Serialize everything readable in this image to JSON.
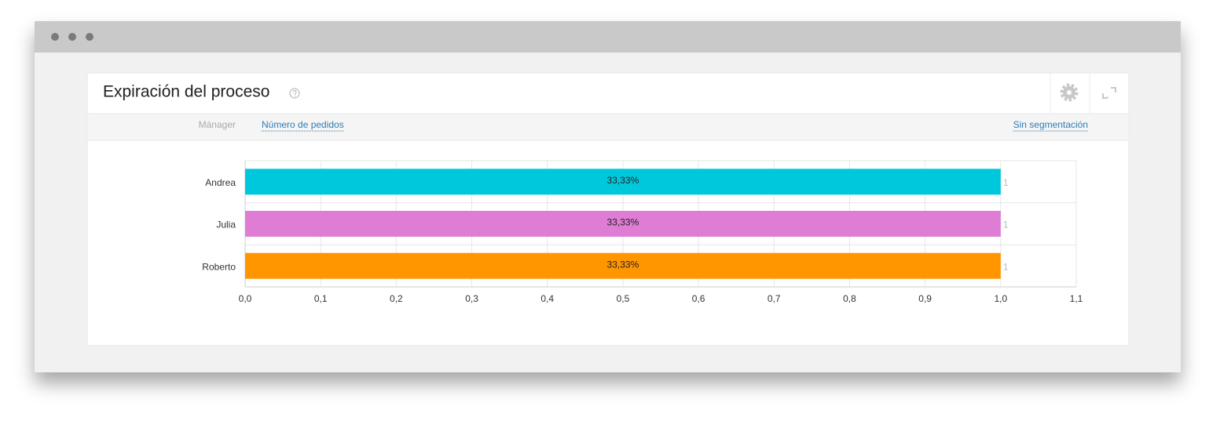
{
  "widget": {
    "title": "Expiración del proceso",
    "toolbar": {
      "dimension": "Mánager",
      "metric": "Número de pedidos",
      "segmentation": "Sin segmentación"
    }
  },
  "chart_data": {
    "type": "bar",
    "orientation": "horizontal",
    "categories": [
      "Andrea",
      "Julia",
      "Roberto"
    ],
    "values": [
      1,
      1,
      1
    ],
    "share_labels": [
      "33,33%",
      "33,33%",
      "33,33%"
    ],
    "colors": [
      "#00c8dc",
      "#df7dd4",
      "#ff9600"
    ],
    "xlim": [
      0,
      1.1
    ],
    "xticks": [
      {
        "value": 0,
        "label": "0,0"
      },
      {
        "value": 0.1,
        "label": "0,1"
      },
      {
        "value": 0.2,
        "label": "0,2"
      },
      {
        "value": 0.3,
        "label": "0,3"
      },
      {
        "value": 0.4,
        "label": "0,4"
      },
      {
        "value": 0.5,
        "label": "0,5"
      },
      {
        "value": 0.6,
        "label": "0,6"
      },
      {
        "value": 0.7,
        "label": "0,7"
      },
      {
        "value": 0.8,
        "label": "0,8"
      },
      {
        "value": 0.9,
        "label": "0,9"
      },
      {
        "value": 1,
        "label": "1,0"
      },
      {
        "value": 1.1,
        "label": "1,1"
      }
    ],
    "grid": true
  }
}
